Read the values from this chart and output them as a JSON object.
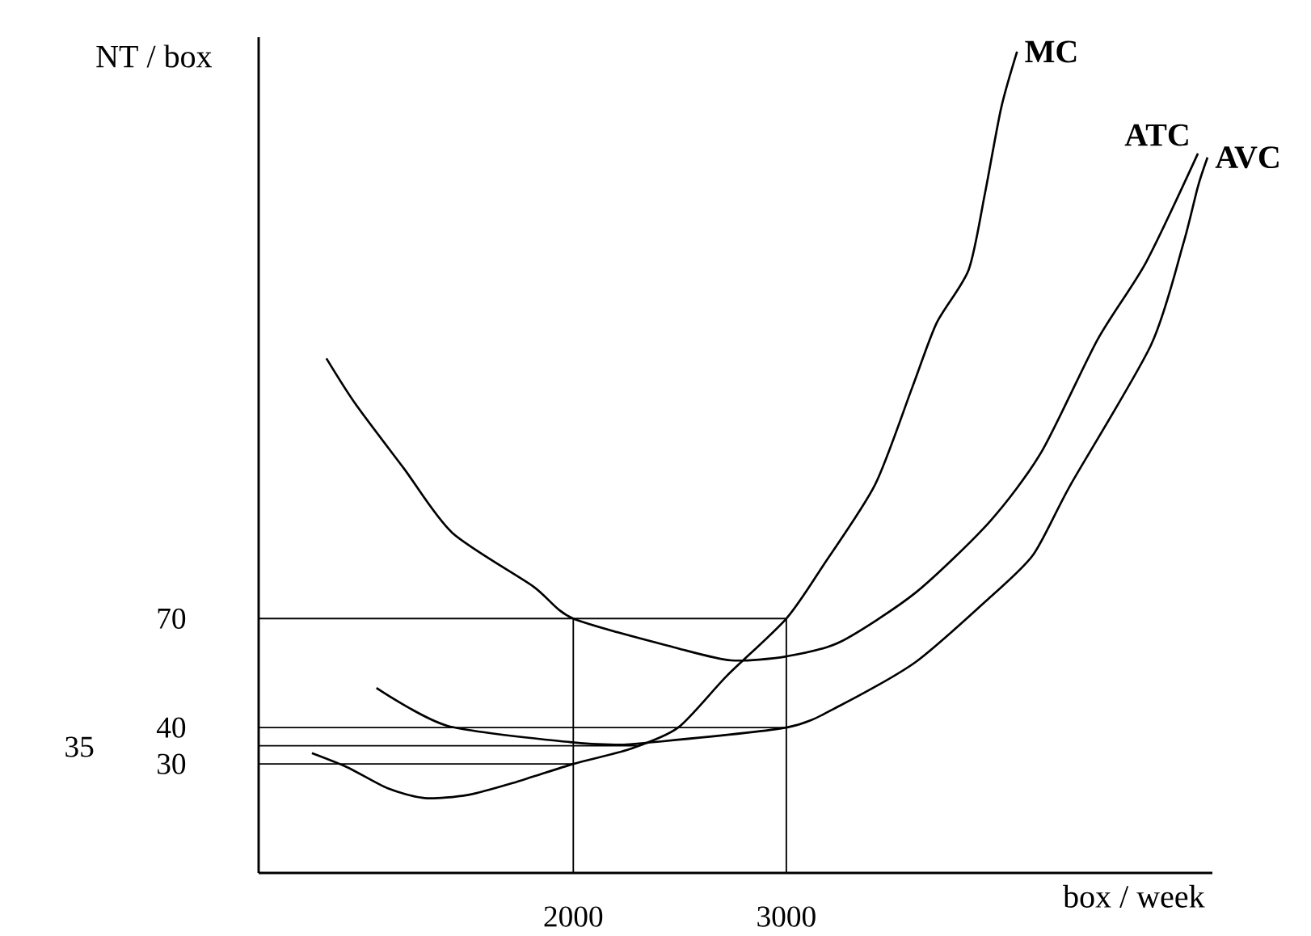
{
  "chart_data": {
    "type": "line",
    "xlabel": "box / week",
    "ylabel": "NT / box",
    "xlim": [
      523,
      5000
    ],
    "ylim": [
      0,
      230
    ],
    "xticks": [
      2000,
      3000
    ],
    "yticks": [
      30,
      40,
      70
    ],
    "annotations": [
      "35"
    ],
    "grid": false,
    "legend": false,
    "series": [
      {
        "name": "MC",
        "color": "#000000",
        "x": [
          773,
          939,
          1129,
          1303,
          1508,
          1735,
          2000,
          2265,
          2492,
          2720,
          3000,
          3174,
          3417,
          3591,
          3705,
          3856,
          3932,
          4008,
          4083
        ],
        "values": [
          33.0,
          29.1,
          23.3,
          20.6,
          21.5,
          25.1,
          30,
          34.1,
          40,
          54.2,
          70,
          84.7,
          106.9,
          133.6,
          151.3,
          166,
          186.9,
          210.4,
          226
        ]
      },
      {
        "name": "ATC",
        "color": "#000000",
        "x": [
          841,
          977,
          1205,
          1432,
          1811,
          2000,
          2492,
          2742,
          3000,
          3250,
          3606,
          3955,
          4197,
          4462,
          4689,
          4932
        ],
        "values": [
          141.6,
          129.1,
          111.3,
          93.6,
          78.9,
          70,
          61.8,
          58.5,
          59.6,
          63.5,
          77.1,
          96.7,
          115.8,
          146.9,
          168.1,
          198
        ]
      },
      {
        "name": "AVC",
        "color": "#000000",
        "x": [
          1076,
          1409,
          1985,
          2200,
          2341,
          3000,
          3250,
          3606,
          3955,
          4159,
          4333,
          4712,
          4864,
          4932,
          4977
        ],
        "values": [
          50.9,
          40.5,
          36.0,
          35.3,
          35.8,
          40,
          46,
          58,
          75.8,
          87.6,
          106.7,
          145.3,
          173.3,
          188.9,
          196.9
        ]
      },
      {
        "color": "#000000",
        "x": [
          523,
          3000
        ],
        "values": [
          70,
          70
        ]
      },
      {
        "color": "#000000",
        "x": [
          523,
          3000
        ],
        "values": [
          40,
          40
        ]
      },
      {
        "color": "#000000",
        "x": [
          523,
          2300
        ],
        "values": [
          35,
          35
        ]
      },
      {
        "color": "#000000",
        "x": [
          523,
          2000
        ],
        "values": [
          30,
          30
        ]
      },
      {
        "color": "#000000",
        "x": [
          2000,
          2000
        ],
        "values": [
          0,
          70
        ]
      },
      {
        "color": "#000000",
        "x": [
          3000,
          3000
        ],
        "values": [
          0,
          70
        ]
      }
    ]
  }
}
